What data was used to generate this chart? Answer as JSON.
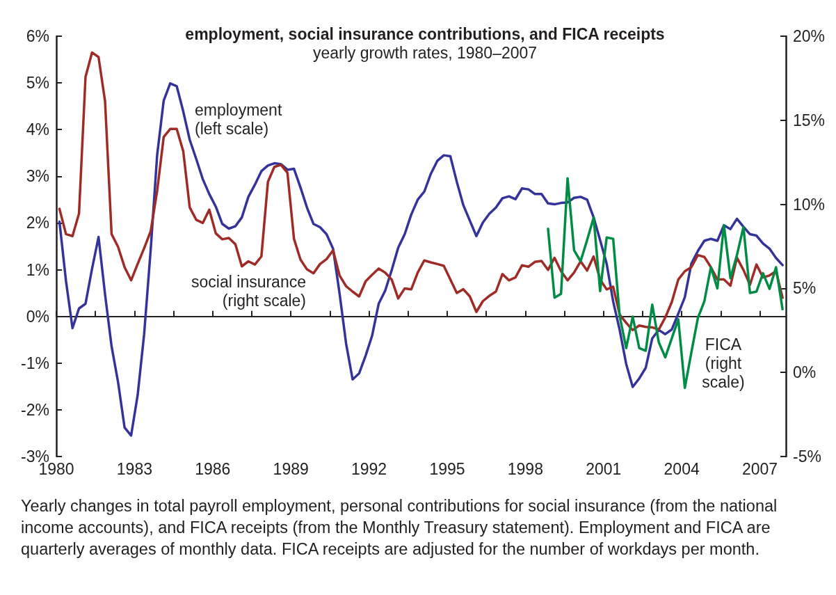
{
  "chart_data": {
    "type": "line",
    "title": "employment, social insurance contributions, and FICA receipts",
    "subtitle": "yearly growth rates, 1980–2007",
    "x": [
      1980.12,
      1980.37,
      1980.62,
      1980.87,
      1981.12,
      1981.37,
      1981.62,
      1981.87,
      1982.12,
      1982.37,
      1982.62,
      1982.87,
      1983.12,
      1983.37,
      1983.62,
      1983.87,
      1984.12,
      1984.37,
      1984.62,
      1984.87,
      1985.12,
      1985.37,
      1985.62,
      1985.87,
      1986.12,
      1986.37,
      1986.62,
      1986.87,
      1987.12,
      1987.37,
      1987.62,
      1987.87,
      1988.12,
      1988.37,
      1988.62,
      1988.87,
      1989.12,
      1989.37,
      1989.62,
      1989.87,
      1990.12,
      1990.37,
      1990.62,
      1990.87,
      1991.12,
      1991.37,
      1991.62,
      1991.87,
      1992.12,
      1992.37,
      1992.62,
      1992.87,
      1993.12,
      1993.37,
      1993.62,
      1993.87,
      1994.12,
      1994.37,
      1994.62,
      1994.87,
      1995.12,
      1995.37,
      1995.62,
      1995.87,
      1996.12,
      1996.37,
      1996.62,
      1996.87,
      1997.12,
      1997.37,
      1997.62,
      1997.87,
      1998.12,
      1998.37,
      1998.62,
      1998.87,
      1999.12,
      1999.37,
      1999.62,
      1999.87,
      2000.12,
      2000.37,
      2000.62,
      2000.87,
      2001.12,
      2001.37,
      2001.62,
      2001.87,
      2002.12,
      2002.37,
      2002.62,
      2002.87,
      2003.12,
      2003.37,
      2003.62,
      2003.87,
      2004.12,
      2004.37,
      2004.62,
      2004.87,
      2005.12,
      2005.37,
      2005.62,
      2005.87,
      2006.12,
      2006.37,
      2006.62,
      2006.87,
      2007.12,
      2007.37,
      2007.62,
      2007.87
    ],
    "series": [
      {
        "name": "employment\n(left scale)",
        "color": "#333399",
        "values": [
          2.03,
          0.76,
          -0.25,
          0.17,
          0.27,
          1.02,
          1.7,
          0.47,
          -0.64,
          -1.41,
          -2.38,
          -2.55,
          -1.69,
          -0.38,
          1.42,
          3.46,
          4.62,
          4.99,
          4.93,
          4.39,
          3.78,
          3.37,
          2.94,
          2.62,
          2.35,
          1.98,
          1.88,
          1.93,
          2.12,
          2.56,
          2.82,
          3.11,
          3.23,
          3.28,
          3.26,
          3.14,
          3.16,
          2.76,
          2.33,
          1.98,
          1.91,
          1.76,
          1.45,
          0.49,
          -0.58,
          -1.35,
          -1.22,
          -0.84,
          -0.41,
          0.27,
          0.55,
          0.99,
          1.47,
          1.76,
          2.18,
          2.5,
          2.67,
          3.05,
          3.33,
          3.45,
          3.43,
          2.88,
          2.38,
          2.05,
          1.72,
          2.01,
          2.2,
          2.33,
          2.53,
          2.57,
          2.51,
          2.74,
          2.72,
          2.62,
          2.62,
          2.42,
          2.4,
          2.43,
          2.44,
          2.54,
          2.56,
          2.5,
          2.12,
          1.63,
          1.13,
          0.32,
          -0.29,
          -1.02,
          -1.51,
          -1.33,
          -1.1,
          -0.47,
          -0.29,
          -0.38,
          -0.28,
          0.06,
          0.41,
          1.13,
          1.4,
          1.62,
          1.66,
          1.62,
          1.95,
          1.87,
          2.09,
          1.92,
          1.76,
          1.73,
          1.56,
          1.45,
          1.25,
          1.1
        ]
      },
      {
        "name": "social insurance\n(right scale)",
        "color": "#9e2b25",
        "axis": "y2",
        "values": [
          9.73,
          8.23,
          8.11,
          9.45,
          17.58,
          19.03,
          18.76,
          16.13,
          8.23,
          7.47,
          6.26,
          5.48,
          6.45,
          7.39,
          8.39,
          10.81,
          14.0,
          14.48,
          14.48,
          13.16,
          9.81,
          9.08,
          8.89,
          9.68,
          8.27,
          7.92,
          8.0,
          7.63,
          6.31,
          6.61,
          6.42,
          6.9,
          11.34,
          12.23,
          12.35,
          11.87,
          7.95,
          6.71,
          6.13,
          5.9,
          6.45,
          6.74,
          7.26,
          5.77,
          5.13,
          4.81,
          4.52,
          5.42,
          5.81,
          6.18,
          5.94,
          5.53,
          4.4,
          5.0,
          4.94,
          5.94,
          6.66,
          6.55,
          6.45,
          6.34,
          5.53,
          4.73,
          4.95,
          4.52,
          3.6,
          4.24,
          4.56,
          4.81,
          5.85,
          5.48,
          5.65,
          6.37,
          6.29,
          6.58,
          6.63,
          6.1,
          6.82,
          6.02,
          5.48,
          5.94,
          6.61,
          6.06,
          6.9,
          5.53,
          4.94,
          5.1,
          3.44,
          2.95,
          2.52,
          2.79,
          2.71,
          2.68,
          2.55,
          3.27,
          4.19,
          5.53,
          6.02,
          6.26,
          6.98,
          6.87,
          6.26,
          5.53,
          5.53,
          5.16,
          6.82,
          6.1,
          5.21,
          6.42,
          5.65,
          5.77,
          6.02,
          4.45
        ]
      },
      {
        "name": "FICA\n(right\nscale)",
        "color": "#008c45",
        "axis": "y2",
        "x": [
          1998.87,
          1999.12,
          1999.37,
          1999.62,
          1999.87,
          2000.12,
          2000.37,
          2000.62,
          2000.87,
          2001.12,
          2001.37,
          2001.62,
          2001.87,
          2002.12,
          2002.37,
          2002.62,
          2002.87,
          2003.12,
          2003.37,
          2003.62,
          2003.87,
          2004.12,
          2004.37,
          2004.62,
          2004.87,
          2005.12,
          2005.37,
          2005.62,
          2005.87,
          2006.12,
          2006.37,
          2006.62,
          2006.87,
          2007.12,
          2007.37,
          2007.62,
          2007.87
        ],
        "values": [
          8.55,
          4.45,
          4.68,
          11.55,
          7.27,
          6.61,
          7.87,
          9.21,
          4.84,
          8.03,
          7.95,
          3.35,
          1.45,
          3.32,
          1.45,
          1.29,
          4.03,
          1.8,
          0.9,
          2.03,
          3.16,
          -0.92,
          1.18,
          3.23,
          4.24,
          6.26,
          5.0,
          8.76,
          5.61,
          6.98,
          8.65,
          4.73,
          4.81,
          5.9,
          4.97,
          6.26,
          3.76
        ]
      }
    ],
    "xlim": [
      1980,
      2008
    ],
    "xticks": [
      1980,
      {
        "value": 1981.5,
        "label": null
      },
      1983,
      {
        "value": 1984.5,
        "label": null
      },
      1986,
      {
        "value": 1987.5,
        "label": null
      },
      1989,
      {
        "value": 1990.5,
        "label": null
      },
      1992,
      {
        "value": 1993.5,
        "label": null
      },
      1995,
      {
        "value": 1996.5,
        "label": null
      },
      1998,
      {
        "value": 1999.5,
        "label": null
      },
      2001,
      {
        "value": 2002.5,
        "label": null
      },
      2004,
      {
        "value": 2005.5,
        "label": null
      },
      2007
    ],
    "ylim": [
      -3,
      6
    ],
    "yticks": [
      {
        "value": -3,
        "label": "-3%"
      },
      {
        "value": -2,
        "label": "-2%"
      },
      {
        "value": -1,
        "label": "-1%"
      },
      {
        "value": 0,
        "label": "0%"
      },
      {
        "value": 1,
        "label": "1%"
      },
      {
        "value": 2,
        "label": "2%"
      },
      {
        "value": 3,
        "label": "3%"
      },
      {
        "value": 4,
        "label": "4%"
      },
      {
        "value": 5,
        "label": "5%"
      },
      {
        "value": 6,
        "label": "6%"
      }
    ],
    "y2lim": [
      -5,
      20
    ],
    "y2ticks": [
      {
        "value": -5,
        "label": "-5%"
      },
      {
        "value": 0,
        "label": "0%"
      },
      {
        "value": 5,
        "label": "5%"
      },
      {
        "value": 10,
        "label": "10%"
      },
      {
        "value": 15,
        "label": "15%"
      },
      {
        "value": 20,
        "label": "20%"
      }
    ],
    "annotations": [
      "Yearly changes in total payroll employment, personal contributions for social insurance (from the national income accounts), and FICA receipts (from the Monthly Treasury statement). Employment and FICA are quarterly averages of monthly data. FICA receipts are adjusted for the number of workdays per month."
    ]
  }
}
